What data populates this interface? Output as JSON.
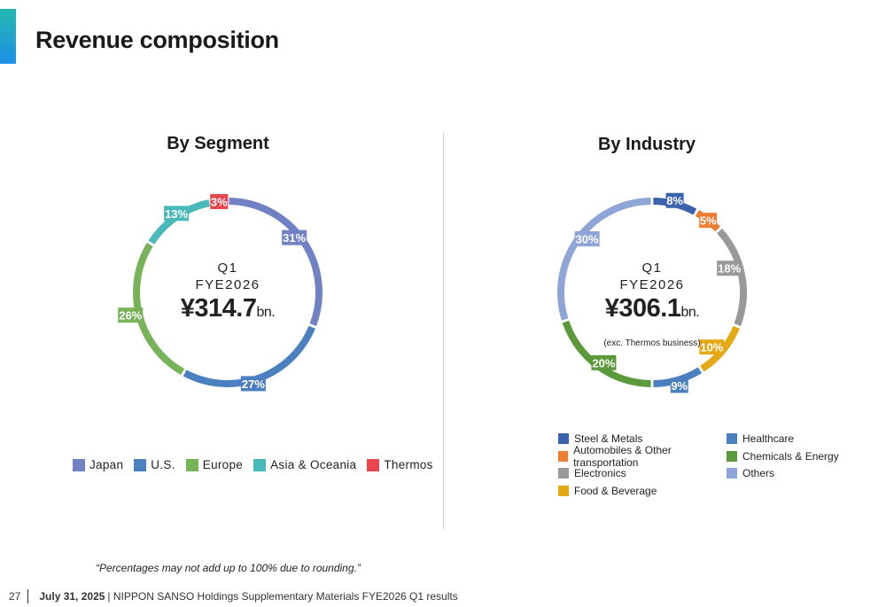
{
  "page": {
    "title": "Revenue composition",
    "footnote": "“Percentages may not add up to 100% due to rounding.”",
    "page_number": "27",
    "footer_date": "July 31, 2025",
    "footer_text": "| NIPPON SANSO Holdings Supplementary Materials FYE2026 Q1 results"
  },
  "chart_data": [
    {
      "type": "pie",
      "title": "By Segment",
      "center": {
        "line1": "Q1",
        "line2": "FYE2026",
        "amount": "¥314.7",
        "unit": "bn.",
        "note": ""
      },
      "categories": [
        "Japan",
        "U.S.",
        "Europe",
        "Asia & Oceania",
        "Thermos"
      ],
      "values": [
        31,
        27,
        26,
        13,
        3
      ],
      "labels": [
        "31%",
        "27%",
        "26%",
        "13%",
        "3%"
      ],
      "colors": [
        "#7280c4",
        "#4a7fc0",
        "#78b35a",
        "#4ab9b9",
        "#e8454e"
      ],
      "legend": "bottom"
    },
    {
      "type": "pie",
      "title": "By Industry",
      "center": {
        "line1": "Q1",
        "line2": "FYE2026",
        "amount": "¥306.1",
        "unit": "bn.",
        "note": "(exc. Thermos business)"
      },
      "categories": [
        "Steel & Metals",
        "Automobiles & Other transportation",
        "Electronics",
        "Food & Beverage",
        "Healthcare",
        "Chemicals & Energy",
        "Others"
      ],
      "values": [
        8,
        5,
        18,
        10,
        9,
        20,
        30
      ],
      "labels": [
        "8%",
        "5%",
        "18%",
        "10%",
        "9%",
        "20%",
        "30%"
      ],
      "colors": [
        "#3b63ad",
        "#ed7d31",
        "#999999",
        "#e3aa16",
        "#4a7fc0",
        "#5a9a3c",
        "#8fa5d8"
      ],
      "legend_order": [
        0,
        4,
        1,
        5,
        2,
        6,
        3
      ],
      "legend": "bottom"
    }
  ]
}
